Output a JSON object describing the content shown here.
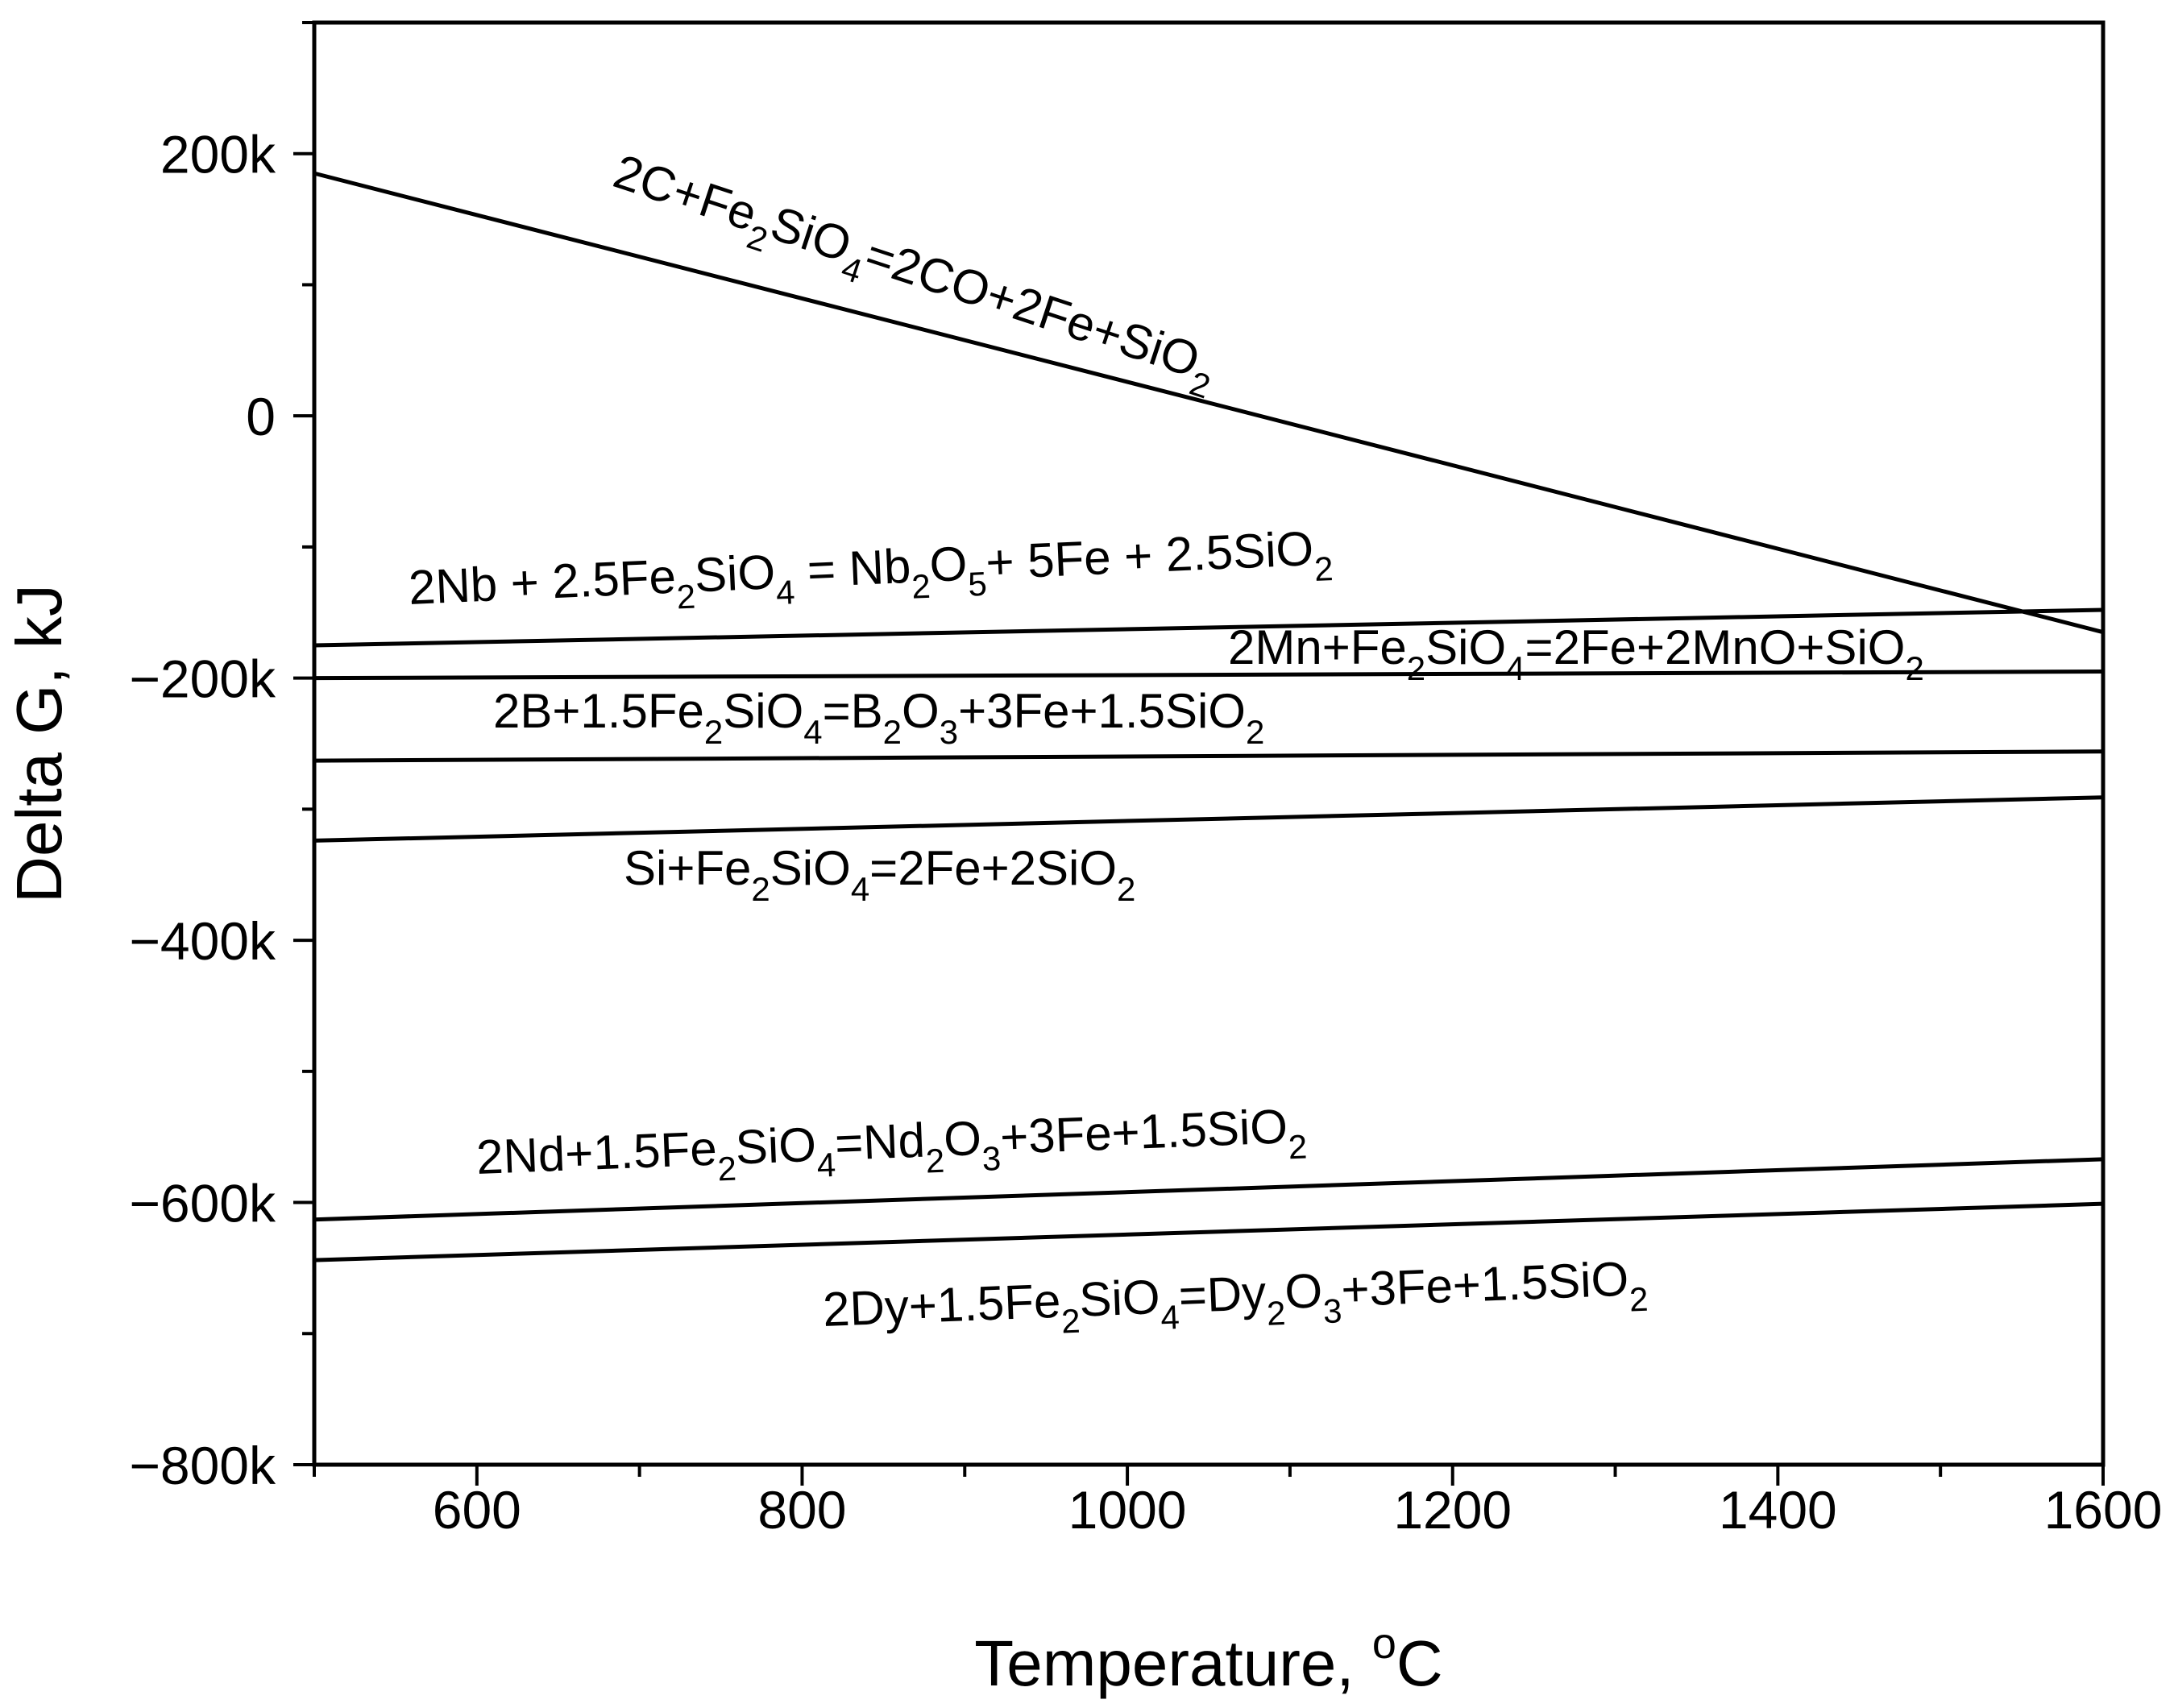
{
  "chart_data": {
    "type": "line",
    "xlabel": "Temperature, ",
    "xlabel_sup": "o",
    "xlabel_unit": "C",
    "ylabel": "Delta G, kJ",
    "xlim": [
      500,
      1600
    ],
    "ylim": [
      -800000,
      300000
    ],
    "x_ticks": [
      600,
      800,
      1000,
      1200,
      1400,
      1600
    ],
    "x_tick_labels": [
      "600",
      "800",
      "1000",
      "1200",
      "1400",
      "1600"
    ],
    "y_ticks": [
      200000,
      0,
      -200000,
      -400000,
      -600000,
      -800000
    ],
    "y_tick_labels": [
      "200k",
      "0",
      "−200k",
      "−400k",
      "−600k",
      "−800k"
    ],
    "grid": false,
    "legend": "none",
    "line_color": "#000000",
    "series": [
      {
        "id": "c",
        "x": [
          500,
          1600
        ],
        "y": [
          185000,
          -165000
        ],
        "label": [
          [
            "2C+Fe"
          ],
          [
            "2",
            "sub"
          ],
          [
            "SiO"
          ],
          [
            "4",
            "sub"
          ],
          [
            "=2CO+2Fe+SiO"
          ],
          [
            "2",
            "sub"
          ]
        ]
      },
      {
        "id": "nb",
        "x": [
          500,
          1600
        ],
        "y": [
          -175000,
          -148000
        ],
        "label": [
          [
            "2Nb + 2.5Fe"
          ],
          [
            "2",
            "sub"
          ],
          [
            "SiO"
          ],
          [
            "4",
            "sub"
          ],
          [
            " = Nb"
          ],
          [
            "2",
            "sub"
          ],
          [
            "O"
          ],
          [
            "5",
            "sub"
          ],
          [
            "+ 5Fe + 2.5SiO"
          ],
          [
            "2",
            "sub"
          ]
        ]
      },
      {
        "id": "mn",
        "x": [
          500,
          1600
        ],
        "y": [
          -200000,
          -195000
        ],
        "label": [
          [
            "2Mn+Fe"
          ],
          [
            "2",
            "sub"
          ],
          [
            "SiO"
          ],
          [
            "4",
            "sub"
          ],
          [
            "=2Fe+2MnO+SiO"
          ],
          [
            "2",
            "sub"
          ]
        ]
      },
      {
        "id": "b",
        "x": [
          500,
          1600
        ],
        "y": [
          -263000,
          -256000
        ],
        "label": [
          [
            "2B+1.5Fe"
          ],
          [
            "2",
            "sub"
          ],
          [
            "SiO"
          ],
          [
            "4",
            "sub"
          ],
          [
            "=B"
          ],
          [
            "2",
            "sub"
          ],
          [
            "O"
          ],
          [
            "3",
            "sub"
          ],
          [
            "+3Fe+1.5SiO"
          ],
          [
            "2",
            "sub"
          ]
        ]
      },
      {
        "id": "si",
        "x": [
          500,
          1600
        ],
        "y": [
          -324000,
          -291000
        ],
        "label": [
          [
            "Si+Fe"
          ],
          [
            "2",
            "sub"
          ],
          [
            "SiO"
          ],
          [
            "4",
            "sub"
          ],
          [
            "=2Fe+2SiO"
          ],
          [
            "2",
            "sub"
          ]
        ]
      },
      {
        "id": "nd",
        "x": [
          500,
          1600
        ],
        "y": [
          -613000,
          -567000
        ],
        "label": [
          [
            "2Nd+1.5Fe"
          ],
          [
            "2",
            "sub"
          ],
          [
            "SiO"
          ],
          [
            "4",
            "sub"
          ],
          [
            "=Nd"
          ],
          [
            "2",
            "sub"
          ],
          [
            "O"
          ],
          [
            "3",
            "sub"
          ],
          [
            "+3Fe+1.5SiO"
          ],
          [
            "2",
            "sub"
          ]
        ]
      },
      {
        "id": "dy",
        "x": [
          500,
          1600
        ],
        "y": [
          -644000,
          -601000
        ],
        "label": [
          [
            "2Dy+1.5Fe"
          ],
          [
            "2",
            "sub"
          ],
          [
            "SiO"
          ],
          [
            "4",
            "sub"
          ],
          [
            "=Dy"
          ],
          [
            "2",
            "sub"
          ],
          [
            "O"
          ],
          [
            "3",
            "sub"
          ],
          [
            "+3Fe+1.5SiO"
          ],
          [
            "2",
            "sub"
          ]
        ]
      }
    ]
  }
}
